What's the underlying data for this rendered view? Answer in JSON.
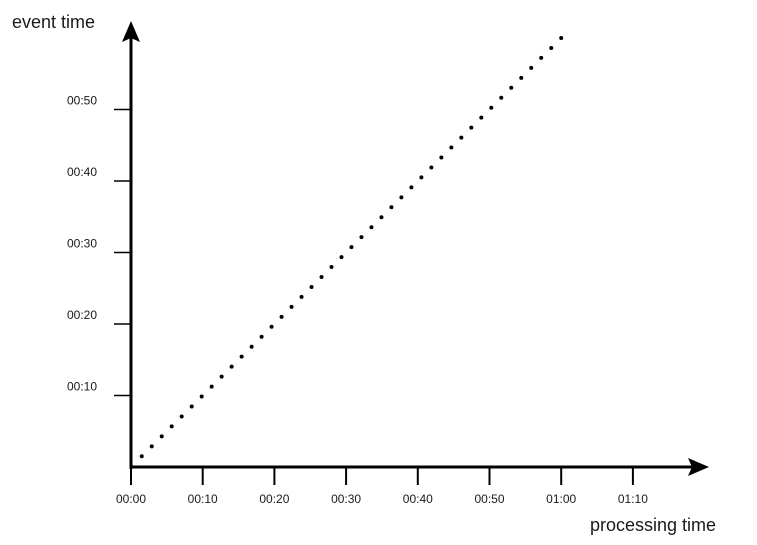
{
  "chart_data": {
    "type": "line",
    "xlabel": "processing time",
    "ylabel": "event time",
    "x_ticks": [
      "00:00",
      "00:10",
      "00:20",
      "00:30",
      "00:40",
      "00:50",
      "01:00",
      "01:10"
    ],
    "y_ticks": [
      "00:10",
      "00:20",
      "00:30",
      "00:40",
      "00:50"
    ],
    "xlim_minutes": [
      0,
      75
    ],
    "ylim_minutes": [
      0,
      60
    ],
    "series": [
      {
        "style": "dotted",
        "color": "#000000",
        "x_minutes": [
          1.5,
          60
        ],
        "y_minutes": [
          1.5,
          60
        ]
      }
    ],
    "grid": false
  }
}
